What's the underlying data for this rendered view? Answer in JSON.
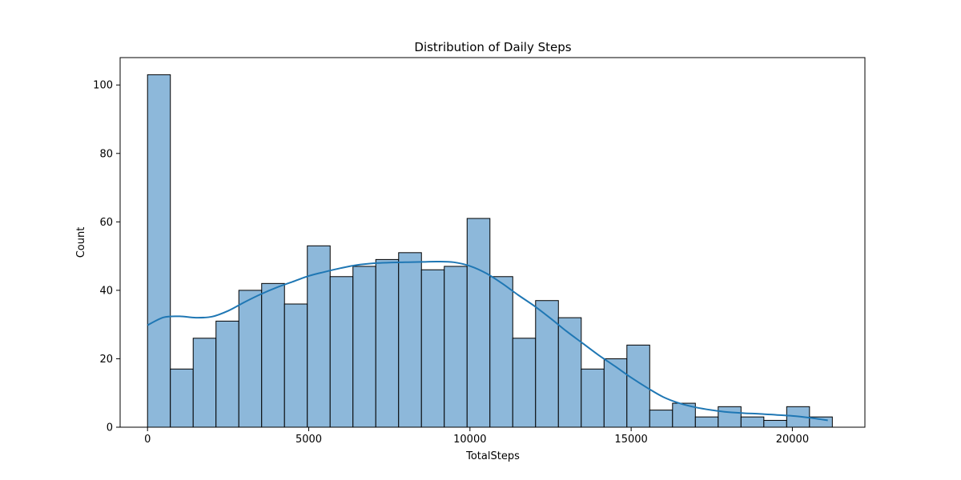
{
  "chart_data": {
    "type": "bar",
    "title": "Distribution of Daily Steps",
    "xlabel": "TotalSteps",
    "ylabel": "Count",
    "xlim": [
      -850,
      22250
    ],
    "ylim": [
      0,
      108
    ],
    "x_ticks": [
      0,
      5000,
      10000,
      15000,
      20000
    ],
    "y_ticks": [
      0,
      20,
      40,
      60,
      80,
      100
    ],
    "grid": false,
    "bin_start": 0,
    "bin_width": 708,
    "counts": [
      103,
      17,
      26,
      31,
      40,
      42,
      36,
      53,
      44,
      47,
      49,
      51,
      46,
      47,
      61,
      44,
      26,
      37,
      32,
      17,
      20,
      24,
      5,
      7,
      3,
      6,
      3,
      2,
      6,
      3
    ],
    "kde": {
      "x": [
        0,
        500,
        1000,
        1500,
        2000,
        2500,
        3000,
        3500,
        4000,
        4500,
        5000,
        5500,
        6000,
        6500,
        7000,
        7500,
        8000,
        8500,
        9000,
        9500,
        10000,
        10500,
        11000,
        11500,
        12000,
        12500,
        13000,
        13500,
        14000,
        14500,
        15000,
        15500,
        16000,
        16500,
        17000,
        17500,
        18000,
        18500,
        19000,
        19500,
        20000,
        20500,
        21100
      ],
      "y": [
        29.8,
        32.1,
        32.4,
        32.0,
        32.3,
        34.0,
        36.5,
        38.8,
        40.8,
        42.5,
        44.2,
        45.4,
        46.5,
        47.4,
        47.9,
        48.1,
        48.2,
        48.3,
        48.4,
        48.2,
        47.1,
        45.0,
        42.0,
        38.6,
        35.4,
        31.8,
        28.0,
        24.5,
        21.0,
        17.8,
        14.5,
        11.5,
        8.8,
        7.0,
        5.8,
        5.0,
        4.4,
        4.1,
        3.9,
        3.6,
        3.3,
        2.8,
        2.0
      ]
    },
    "colors": {
      "bar_fill": "#8db8da",
      "bar_edge": "#000000",
      "kde_line": "#1f77b4"
    }
  }
}
